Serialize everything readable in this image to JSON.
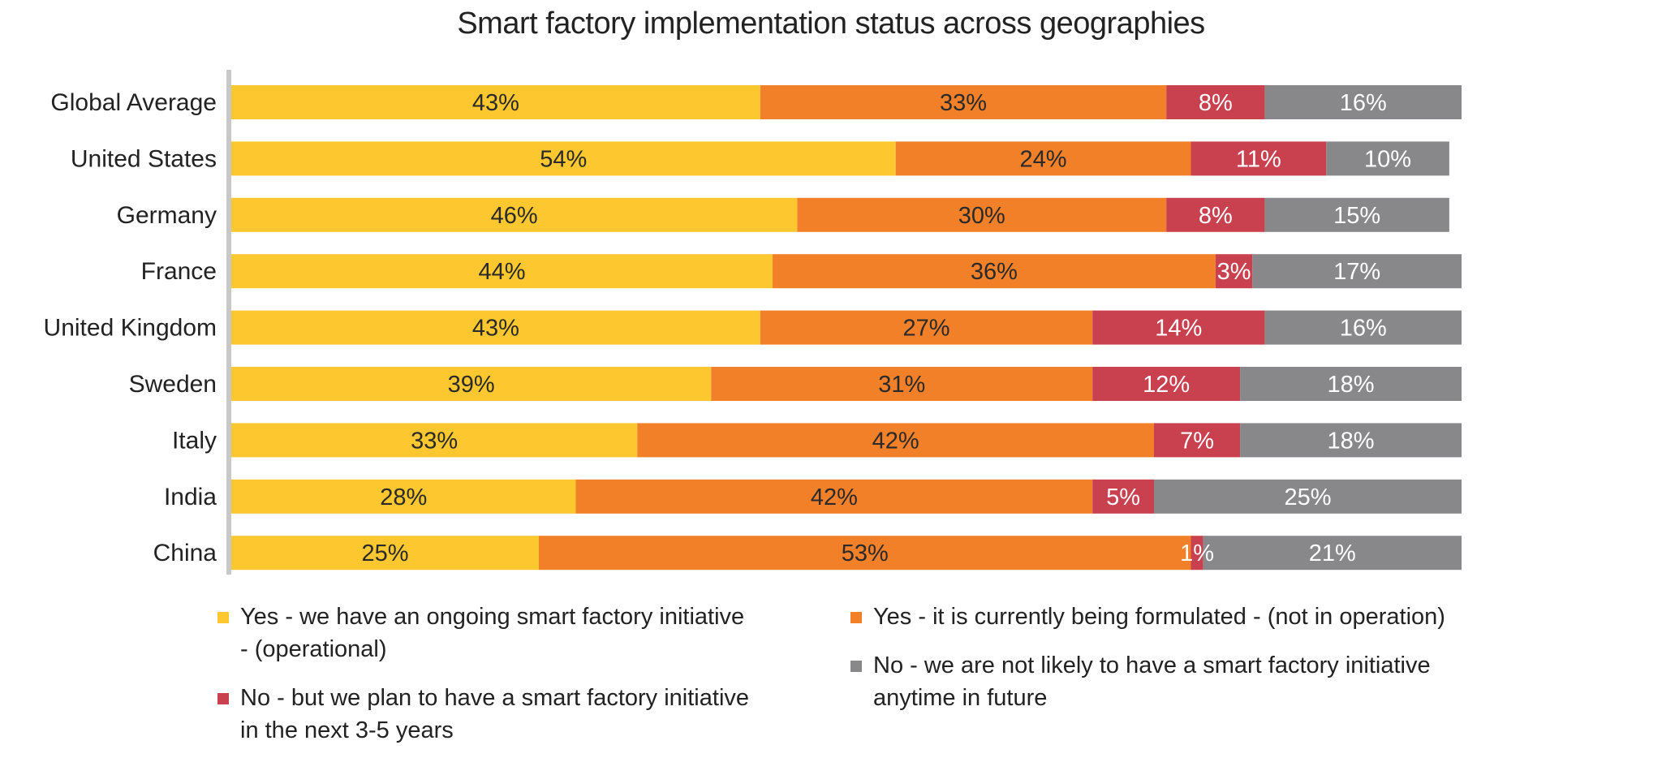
{
  "chart_data": {
    "type": "bar",
    "orientation": "horizontal",
    "stacked": true,
    "title": "Smart factory implementation status across geographies",
    "categories": [
      "Global Average",
      "United States",
      "Germany",
      "France",
      "United Kingdom",
      "Sweden",
      "Italy",
      "India",
      "China"
    ],
    "series": [
      {
        "name": "Yes - we have an ongoing smart factory initiative - (operational)",
        "color": "#FDC82F",
        "label_color": "#2A2A2A",
        "values": [
          43,
          54,
          46,
          44,
          43,
          39,
          33,
          28,
          25
        ],
        "labels": [
          "43%",
          "54%",
          "46%",
          "44%",
          "43%",
          "39%",
          "33%",
          "28%",
          "25%"
        ]
      },
      {
        "name": "Yes - it is currently being formulated - (not in operation)",
        "color": "#F18029",
        "label_color": "#2A2A2A",
        "values": [
          33,
          24,
          30,
          36,
          27,
          31,
          42,
          42,
          53
        ],
        "labels": [
          "33%",
          "24%",
          "30%",
          "36%",
          "27%",
          "31%",
          "42%",
          "42%",
          "53%"
        ]
      },
      {
        "name": "No - but we plan to have a smart factory initiative in the next 3-5 years",
        "color": "#C9404E",
        "label_color": "#FFFFFF",
        "values": [
          8,
          11,
          8,
          3,
          14,
          12,
          7,
          5,
          1
        ],
        "labels": [
          "8%",
          "11%",
          "8%",
          "3%",
          "14%",
          "12%",
          "7%",
          "5%",
          "1%"
        ]
      },
      {
        "name": "No - we are not likely to have a smart factory initiative anytime in future",
        "color": "#88888B",
        "label_color": "#FFFFFF",
        "values": [
          16,
          10,
          15,
          17,
          16,
          18,
          18,
          25,
          21
        ],
        "labels": [
          "16%",
          "10%",
          "15%",
          "17%",
          "16%",
          "18%",
          "18%",
          "25%",
          "21%"
        ]
      }
    ],
    "xlim": [
      0,
      100
    ],
    "xlabel": "",
    "ylabel": "",
    "grid": false,
    "legend_position": "bottom"
  },
  "legend": {
    "col1": [
      {
        "series_index": 0,
        "lines": [
          "Yes - we have an ongoing smart factory initiative",
          "- (operational)"
        ]
      },
      {
        "series_index": 2,
        "lines": [
          "No - but we plan to have a smart factory initiative",
          "in the next 3-5 years"
        ]
      }
    ],
    "col2": [
      {
        "series_index": 1,
        "lines": [
          "Yes - it is currently being formulated - (not in operation)"
        ]
      },
      {
        "series_index": 3,
        "lines": [
          "No - we are not likely to have a smart factory initiative",
          "anytime in future"
        ]
      }
    ]
  }
}
